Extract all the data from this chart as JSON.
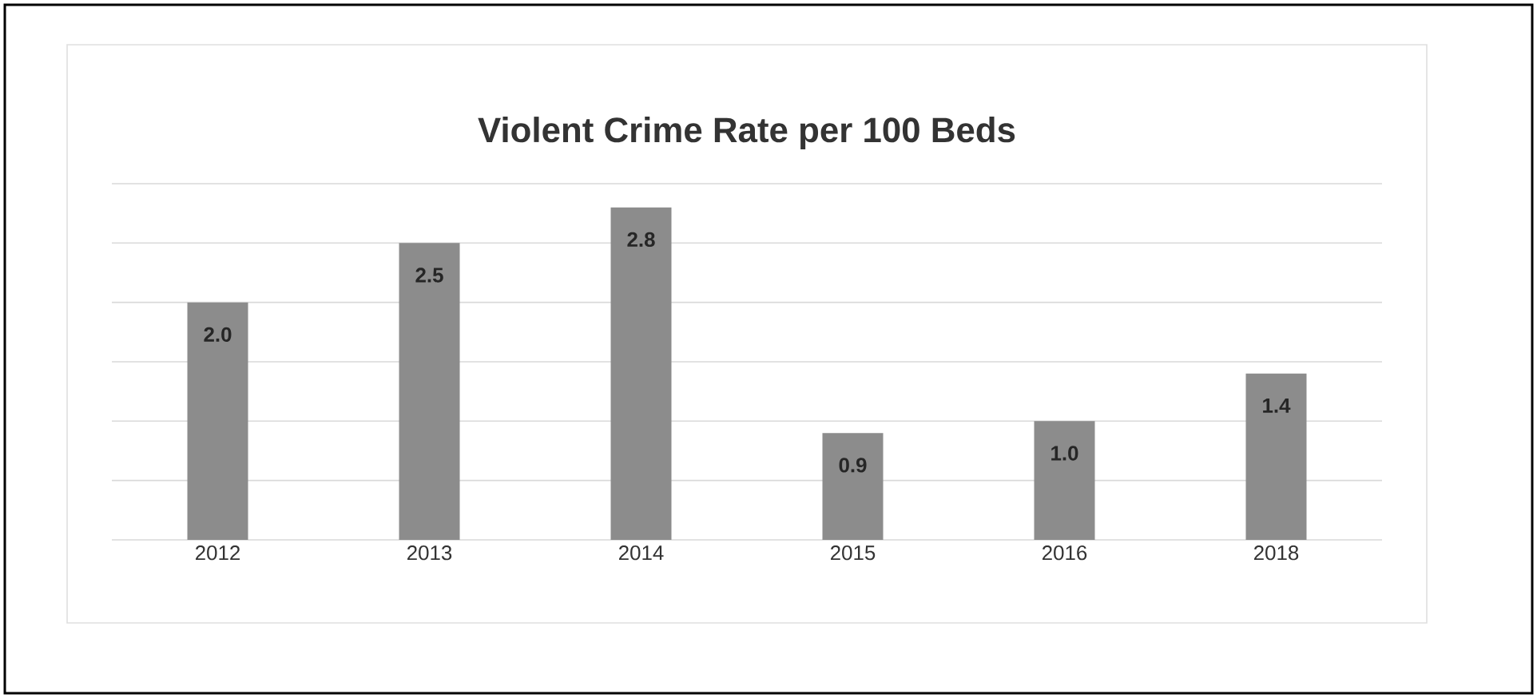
{
  "chart_data": {
    "type": "bar",
    "title": "Violent Crime Rate per 100 Beds",
    "categories": [
      "2012",
      "2013",
      "2014",
      "2015",
      "2016",
      "2018"
    ],
    "values": [
      2.0,
      2.5,
      2.8,
      0.9,
      1.0,
      1.4
    ],
    "value_labels": [
      "2.0",
      "2.5",
      "2.8",
      "0.9",
      "1.0",
      "1.4"
    ],
    "color": "#8c8c8c",
    "ylim": [
      0,
      3
    ],
    "yticks": [
      {
        "value": 0,
        "label": null
      },
      {
        "value": 0.5,
        "label": null
      },
      {
        "value": 1,
        "label": null
      },
      {
        "value": 1.5,
        "label": null
      },
      {
        "value": 2,
        "label": null
      },
      {
        "value": 2.5,
        "label": null
      },
      {
        "value": 3,
        "label": null
      }
    ],
    "tick_labels": "x",
    "grid": "y"
  }
}
